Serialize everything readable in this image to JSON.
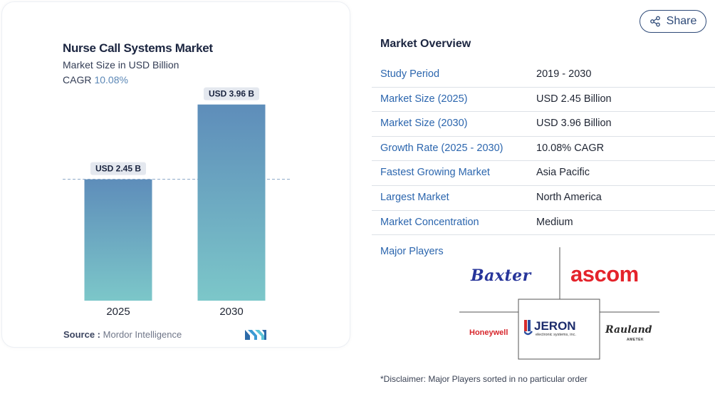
{
  "chart_data": {
    "type": "bar",
    "title": "Nurse Call Systems Market",
    "subtitle": "Market Size in USD Billion",
    "cagr_label": "CAGR",
    "cagr_value": "10.08%",
    "categories": [
      "2025",
      "2030"
    ],
    "values": [
      2.45,
      3.96
    ],
    "data_labels": [
      "USD 2.45 B",
      "USD 3.96 B"
    ],
    "reference_line": 2.45,
    "ylim": [
      0,
      4.2
    ],
    "colors": {
      "bar_top": "#5e8dba",
      "bar_bottom": "#7cc7c9",
      "label_bg": "#e4e8ef",
      "ref_line": "#8aa6c6"
    }
  },
  "source": {
    "label": "Source :",
    "text": "Mordor Intelligence"
  },
  "share": {
    "label": "Share",
    "icon": "share-icon"
  },
  "overview": {
    "title": "Market Overview",
    "rows": [
      {
        "key": "Study Period",
        "value": "2019 - 2030"
      },
      {
        "key": "Market Size (2025)",
        "value": "USD 2.45 Billion"
      },
      {
        "key": "Market Size (2030)",
        "value": "USD 3.96 Billion"
      },
      {
        "key": "Growth Rate (2025 - 2030)",
        "value": "10.08% CAGR"
      },
      {
        "key": "Fastest Growing Market",
        "value": "Asia Pacific"
      },
      {
        "key": "Largest Market",
        "value": "North America"
      },
      {
        "key": "Market Concentration",
        "value": "Medium"
      }
    ]
  },
  "players": {
    "label": "Major Players",
    "logos": [
      "Baxter",
      "ascom",
      "Honeywell",
      "JERON",
      "electronic systems, inc.",
      "Rauland",
      "AMETEK"
    ]
  },
  "disclaimer": "*Disclaimer: Major Players sorted in no particular order"
}
